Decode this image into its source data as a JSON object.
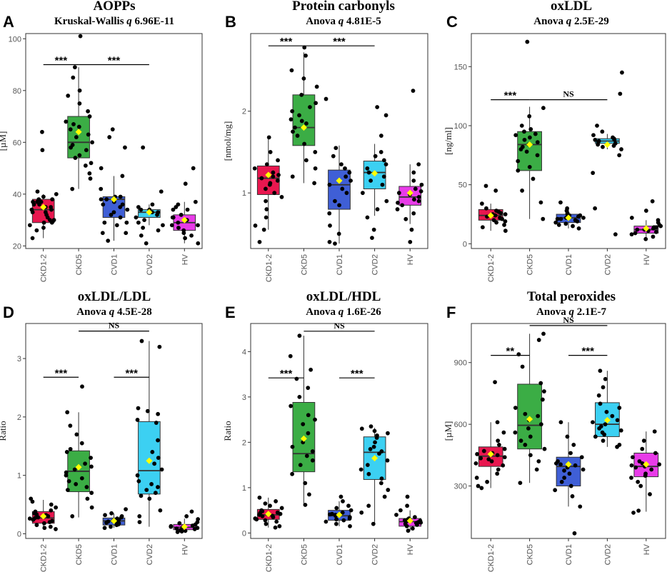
{
  "colors": {
    "CKD1-2": "#e8174f",
    "CKD5": "#3bad45",
    "CVD1": "#3f5fd6",
    "CVD2": "#3cd0f2",
    "HV": "#e83be8",
    "mean_marker": "#ffff00",
    "point": "#000000"
  },
  "chart_data": [
    {
      "panel": "A",
      "type": "box",
      "title": "AOPPs",
      "subtitle_prefix": "Kruskal-Wallis",
      "subtitle_q": "q",
      "subtitle_value": "6.96E-11",
      "ylabel": "[µM]",
      "ylim": [
        19,
        102
      ],
      "yticks": [
        20,
        40,
        60,
        80,
        100
      ],
      "categories": [
        "CKD1-2",
        "CKD5",
        "CVD1",
        "CVD2",
        "HV"
      ],
      "boxes": [
        {
          "q1": 29,
          "median": 34,
          "q3": 38,
          "wlo": 23,
          "whi": 40,
          "mean": 35
        },
        {
          "q1": 54,
          "median": 60,
          "q3": 70,
          "wlo": 42,
          "whi": 89,
          "mean": 64
        },
        {
          "q1": 31,
          "median": 38,
          "q3": 39,
          "wlo": 22,
          "whi": 47,
          "mean": 38
        },
        {
          "q1": 31,
          "median": 33,
          "q3": 34,
          "wlo": 28,
          "whi": 36,
          "mean": 33
        },
        {
          "q1": 26,
          "median": 29,
          "q3": 32,
          "wlo": 21,
          "whi": 37,
          "mean": 30
        }
      ],
      "points": [
        [
          30,
          34,
          37,
          38,
          36,
          29,
          33,
          40,
          41,
          35,
          28,
          26,
          31,
          39,
          23,
          36,
          32,
          64,
          57,
          37,
          34,
          30,
          38,
          27,
          33,
          37,
          35,
          29
        ],
        [
          101,
          89,
          85,
          80,
          78,
          68,
          70,
          65,
          62,
          60,
          58,
          55,
          52,
          48,
          42,
          75,
          72,
          67,
          63,
          59,
          57,
          54,
          51,
          46,
          66
        ],
        [
          65,
          62,
          58,
          50,
          47,
          42,
          39,
          38,
          37,
          36,
          35,
          34,
          33,
          31,
          29,
          28,
          25,
          22,
          39,
          38,
          36,
          32,
          29,
          25
        ],
        [
          58,
          41,
          36,
          35,
          34,
          33,
          32,
          31,
          29,
          27,
          26,
          24,
          21,
          33,
          34,
          30,
          28
        ],
        [
          50,
          44,
          37,
          36,
          35,
          34,
          32,
          31,
          30,
          29,
          28,
          27,
          26,
          25,
          24,
          23,
          21,
          34,
          31,
          28
        ]
      ],
      "comparisons": [
        {
          "from": 0,
          "to": 1,
          "label": "***",
          "y": 90
        },
        {
          "from": 1,
          "to": 3,
          "label": "***",
          "y": 90
        }
      ]
    },
    {
      "panel": "B",
      "type": "box",
      "title": "Protein carbonyls",
      "subtitle_prefix": "Anova",
      "subtitle_q": "q",
      "subtitle_value": "4.81E-5",
      "ylabel": "[nmol/mg]",
      "ylim": [
        0.32,
        2.95
      ],
      "yticks": [
        1,
        2
      ],
      "categories": [
        "CKD1-2",
        "CKD5",
        "CVD1",
        "CVD2",
        "HV"
      ],
      "boxes": [
        {
          "q1": 0.98,
          "median": 1.18,
          "q3": 1.33,
          "wlo": 0.55,
          "whi": 1.68,
          "mean": 1.22
        },
        {
          "q1": 1.58,
          "median": 1.8,
          "q3": 2.2,
          "wlo": 1.12,
          "whi": 2.72,
          "mean": 1.8
        },
        {
          "q1": 0.8,
          "median": 1.1,
          "q3": 1.28,
          "wlo": 0.38,
          "whi": 1.58,
          "mean": 1.15
        },
        {
          "q1": 1.05,
          "median": 1.25,
          "q3": 1.39,
          "wlo": 0.72,
          "whi": 1.6,
          "mean": 1.24
        },
        {
          "q1": 0.85,
          "median": 0.95,
          "q3": 1.08,
          "wlo": 0.62,
          "whi": 1.35,
          "mean": 1.0
        }
      ],
      "points": [
        [
          1.68,
          1.5,
          1.4,
          1.3,
          1.25,
          1.2,
          1.15,
          1.1,
          1.05,
          1.0,
          0.95,
          0.9,
          0.8,
          0.7,
          0.6,
          0.55,
          0.4,
          1.35,
          1.22,
          1.18,
          1.12
        ],
        [
          2.78,
          2.68,
          2.5,
          2.4,
          2.3,
          2.2,
          2.1,
          2.0,
          1.95,
          1.9,
          1.85,
          1.8,
          1.75,
          1.7,
          1.6,
          1.5,
          1.4,
          1.3,
          1.2,
          1.12,
          2.05,
          1.88
        ],
        [
          2.15,
          1.55,
          1.45,
          1.35,
          1.25,
          1.2,
          1.1,
          1.05,
          1.0,
          0.9,
          0.85,
          0.75,
          0.6,
          0.5,
          0.4,
          0.38,
          1.15,
          1.3
        ],
        [
          2.05,
          1.95,
          1.7,
          1.5,
          1.45,
          1.4,
          1.35,
          1.3,
          1.25,
          1.2,
          1.15,
          1.1,
          1.0,
          0.9,
          0.8,
          0.7,
          0.55,
          0.45
        ],
        [
          2.25,
          1.35,
          1.25,
          1.15,
          1.1,
          1.05,
          1.0,
          0.98,
          0.95,
          0.92,
          0.9,
          0.88,
          0.85,
          0.8,
          0.75,
          0.68,
          0.55,
          0.4,
          1.02
        ]
      ],
      "comparisons": [
        {
          "from": 0,
          "to": 1,
          "label": "***",
          "y": 2.8
        },
        {
          "from": 1,
          "to": 3,
          "label": "***",
          "y": 2.8
        }
      ]
    },
    {
      "panel": "C",
      "type": "box",
      "title": "oxLDL",
      "subtitle_prefix": "Anova",
      "subtitle_q": "q",
      "subtitle_value": "2.5E-29",
      "ylabel": "[ng/ml]",
      "ylim": [
        -4,
        178
      ],
      "yticks": [
        0,
        50,
        100,
        150
      ],
      "categories": [
        "CKD1-2",
        "CKD5",
        "CVD1",
        "CVD2",
        "HV"
      ],
      "boxes": [
        {
          "q1": 20,
          "median": 24,
          "q3": 29,
          "wlo": 11,
          "whi": 34,
          "mean": 24
        },
        {
          "q1": 62,
          "median": 84,
          "q3": 95,
          "wlo": 21,
          "whi": 116,
          "mean": 84
        },
        {
          "q1": 18,
          "median": 22,
          "q3": 25,
          "wlo": 13,
          "whi": 30,
          "mean": 22
        },
        {
          "q1": 85,
          "median": 87,
          "q3": 89,
          "wlo": 80,
          "whi": 93,
          "mean": 84
        },
        {
          "q1": 9,
          "median": 12,
          "q3": 15,
          "wlo": 4,
          "whi": 20,
          "mean": 13
        }
      ],
      "points": [
        [
          49,
          45,
          34,
          30,
          28,
          26,
          25,
          24,
          23,
          22,
          21,
          20,
          19,
          18,
          16,
          14,
          11,
          27,
          25
        ],
        [
          171,
          115,
          108,
          100,
          97,
          95,
          93,
          90,
          88,
          86,
          84,
          82,
          80,
          78,
          75,
          70,
          65,
          62,
          55,
          45,
          35,
          21,
          92
        ],
        [
          35,
          30,
          28,
          26,
          25,
          24,
          23,
          22,
          21,
          20,
          19,
          18,
          17,
          16,
          15,
          13,
          24,
          22,
          21
        ],
        [
          145,
          127,
          100,
          95,
          92,
          90,
          89,
          88,
          87,
          86,
          85,
          84,
          83,
          82,
          80,
          75,
          60,
          30,
          8,
          88
        ],
        [
          36,
          28,
          22,
          20,
          18,
          16,
          15,
          14,
          13,
          12,
          11,
          10,
          9,
          8,
          6,
          4,
          14,
          12
        ]
      ],
      "comparisons": [
        {
          "from": 0,
          "to": 1,
          "label": "***",
          "y": 122
        },
        {
          "from": 1,
          "to": 3,
          "label": "NS",
          "y": 122
        }
      ]
    },
    {
      "panel": "D",
      "type": "box",
      "title": "oxLDL/LDL",
      "subtitle_prefix": "Anova",
      "subtitle_q": "q",
      "subtitle_value": "4.5E-28",
      "ylabel": "Ratio",
      "ylim": [
        -0.08,
        3.6
      ],
      "yticks": [
        0,
        1,
        2,
        3
      ],
      "categories": [
        "CKD1-2",
        "CKD5",
        "CVD1",
        "CVD2",
        "HV"
      ],
      "boxes": [
        {
          "q1": 0.18,
          "median": 0.27,
          "q3": 0.38,
          "wlo": 0.08,
          "whi": 0.58,
          "mean": 0.3
        },
        {
          "q1": 0.72,
          "median": 1.07,
          "q3": 1.42,
          "wlo": 0.28,
          "whi": 2.08,
          "mean": 1.14
        },
        {
          "q1": 0.15,
          "median": 0.22,
          "q3": 0.27,
          "wlo": 0.1,
          "whi": 0.35,
          "mean": 0.22
        },
        {
          "q1": 0.68,
          "median": 1.08,
          "q3": 1.92,
          "wlo": 0.12,
          "whi": 3.3,
          "mean": 1.25
        },
        {
          "q1": 0.07,
          "median": 0.11,
          "q3": 0.16,
          "wlo": 0.03,
          "whi": 0.26,
          "mean": 0.12
        }
      ],
      "points": [
        [
          0.6,
          0.55,
          0.5,
          0.45,
          0.4,
          0.38,
          0.35,
          0.32,
          0.3,
          0.28,
          0.26,
          0.24,
          0.22,
          0.2,
          0.18,
          0.15,
          0.12,
          0.1,
          0.08,
          0.33,
          0.27
        ],
        [
          2.52,
          2.08,
          1.85,
          1.7,
          1.55,
          1.45,
          1.4,
          1.3,
          1.2,
          1.1,
          1.05,
          1.0,
          0.95,
          0.9,
          0.85,
          0.8,
          0.75,
          0.7,
          0.6,
          0.45,
          0.3,
          1.15
        ],
        [
          0.42,
          0.35,
          0.32,
          0.3,
          0.28,
          0.26,
          0.25,
          0.24,
          0.22,
          0.2,
          0.19,
          0.18,
          0.16,
          0.15,
          0.12,
          0.1,
          0.23,
          0.21
        ],
        [
          3.3,
          3.2,
          2.15,
          2.1,
          2.05,
          1.95,
          1.9,
          1.6,
          1.4,
          1.2,
          1.1,
          1.0,
          0.9,
          0.85,
          0.8,
          0.75,
          0.7,
          0.65,
          0.6,
          0.4,
          0.3,
          0.2,
          1.3
        ],
        [
          0.38,
          0.3,
          0.25,
          0.2,
          0.18,
          0.16,
          0.14,
          0.12,
          0.11,
          0.1,
          0.09,
          0.08,
          0.06,
          0.05,
          0.04,
          0.03,
          0.13
        ]
      ],
      "comparisons": [
        {
          "from": 0,
          "to": 1,
          "label": "***",
          "y": 2.68
        },
        {
          "from": 2,
          "to": 3,
          "label": "***",
          "y": 2.68
        },
        {
          "from": 1,
          "to": 3,
          "label": "NS",
          "y": 3.47
        }
      ]
    },
    {
      "panel": "E",
      "type": "box",
      "title": "oxLDL/HDL",
      "subtitle_prefix": "Anova",
      "subtitle_q": "q",
      "subtitle_value": "1.6E-26",
      "ylabel": "Ratio",
      "ylim": [
        -0.12,
        4.62
      ],
      "yticks": [
        0,
        1,
        2,
        3,
        4
      ],
      "categories": [
        "CKD1-2",
        "CKD5",
        "CVD1",
        "CVD2",
        "HV"
      ],
      "boxes": [
        {
          "q1": 0.3,
          "median": 0.4,
          "q3": 0.52,
          "wlo": 0.12,
          "whi": 0.78,
          "mean": 0.42
        },
        {
          "q1": 1.35,
          "median": 1.75,
          "q3": 2.88,
          "wlo": 0.62,
          "whi": 4.35,
          "mean": 2.08
        },
        {
          "q1": 0.28,
          "median": 0.38,
          "q3": 0.5,
          "wlo": 0.15,
          "whi": 0.7,
          "mean": 0.4
        },
        {
          "q1": 1.18,
          "median": 1.78,
          "q3": 2.12,
          "wlo": 0.18,
          "whi": 2.32,
          "mean": 1.65
        },
        {
          "q1": 0.15,
          "median": 0.25,
          "q3": 0.32,
          "wlo": 0.05,
          "whi": 0.5,
          "mean": 0.27
        }
      ],
      "points": [
        [
          0.78,
          0.7,
          0.65,
          0.6,
          0.55,
          0.5,
          0.48,
          0.45,
          0.42,
          0.4,
          0.38,
          0.35,
          0.32,
          0.3,
          0.28,
          0.25,
          0.2,
          0.15,
          0.12,
          0.44,
          0.37
        ],
        [
          4.35,
          3.9,
          3.6,
          3.4,
          3.2,
          3.0,
          2.8,
          2.6,
          2.4,
          2.2,
          2.0,
          1.9,
          1.8,
          1.7,
          1.6,
          1.5,
          1.3,
          1.1,
          0.85,
          0.62,
          2.5
        ],
        [
          0.8,
          0.7,
          0.6,
          0.55,
          0.5,
          0.45,
          0.42,
          0.4,
          0.38,
          0.35,
          0.32,
          0.3,
          0.28,
          0.25,
          0.2,
          0.15,
          0.41
        ],
        [
          2.35,
          2.3,
          2.25,
          2.2,
          2.15,
          2.1,
          2.0,
          1.9,
          1.8,
          1.75,
          1.6,
          1.5,
          1.4,
          1.3,
          1.2,
          1.1,
          0.95,
          0.8,
          0.6,
          0.45,
          0.2,
          1.85
        ],
        [
          0.8,
          0.6,
          0.5,
          0.4,
          0.35,
          0.32,
          0.3,
          0.28,
          0.26,
          0.24,
          0.22,
          0.2,
          0.18,
          0.15,
          0.1,
          0.05,
          0.27,
          0.23
        ]
      ],
      "comparisons": [
        {
          "from": 0,
          "to": 1,
          "label": "***",
          "y": 3.42
        },
        {
          "from": 2,
          "to": 3,
          "label": "***",
          "y": 3.42
        },
        {
          "from": 1,
          "to": 3,
          "label": "NS",
          "y": 4.45
        }
      ]
    },
    {
      "panel": "F",
      "type": "box",
      "title": "Total peroxides",
      "subtitle_prefix": "Anova",
      "subtitle_q": "q",
      "subtitle_value": "2.1E-7",
      "ylabel": "[µM]",
      "ylim": [
        45,
        1090
      ],
      "yticks": [
        300,
        600,
        900
      ],
      "categories": [
        "CKD1-2",
        "CKD5",
        "CVD1",
        "CVD2",
        "HV"
      ],
      "boxes": [
        {
          "q1": 395,
          "median": 445,
          "q3": 490,
          "wlo": 290,
          "whi": 610,
          "mean": 455
        },
        {
          "q1": 480,
          "median": 595,
          "q3": 795,
          "wlo": 315,
          "whi": 1040,
          "mean": 625
        },
        {
          "q1": 300,
          "median": 395,
          "q3": 440,
          "wlo": 200,
          "whi": 610,
          "mean": 405
        },
        {
          "q1": 540,
          "median": 600,
          "q3": 705,
          "wlo": 490,
          "whi": 860,
          "mean": 620
        },
        {
          "q1": 345,
          "median": 395,
          "q3": 460,
          "wlo": 175,
          "whi": 565,
          "mean": 405
        }
      ],
      "points": [
        [
          805,
          610,
          560,
          520,
          500,
          480,
          470,
          460,
          450,
          440,
          430,
          420,
          410,
          400,
          380,
          360,
          340,
          320,
          300,
          290,
          455,
          435
        ],
        [
          1040,
          1010,
          940,
          880,
          800,
          760,
          720,
          680,
          650,
          620,
          600,
          580,
          560,
          540,
          520,
          500,
          480,
          450,
          420,
          380,
          315,
          640
        ],
        [
          610,
          540,
          500,
          460,
          440,
          420,
          410,
          400,
          390,
          380,
          360,
          340,
          320,
          300,
          280,
          250,
          200,
          70,
          405,
          375
        ],
        [
          860,
          820,
          780,
          740,
          700,
          680,
          660,
          640,
          620,
          600,
          590,
          580,
          570,
          560,
          550,
          540,
          520,
          500,
          490,
          610
        ],
        [
          565,
          520,
          480,
          460,
          440,
          420,
          410,
          400,
          390,
          380,
          360,
          350,
          340,
          320,
          300,
          260,
          180,
          170,
          405,
          395
        ]
      ],
      "comparisons": [
        {
          "from": 0,
          "to": 1,
          "label": "**",
          "y": 935
        },
        {
          "from": 2,
          "to": 3,
          "label": "***",
          "y": 935
        },
        {
          "from": 1,
          "to": 3,
          "label": "NS",
          "y": 1080
        }
      ]
    }
  ]
}
